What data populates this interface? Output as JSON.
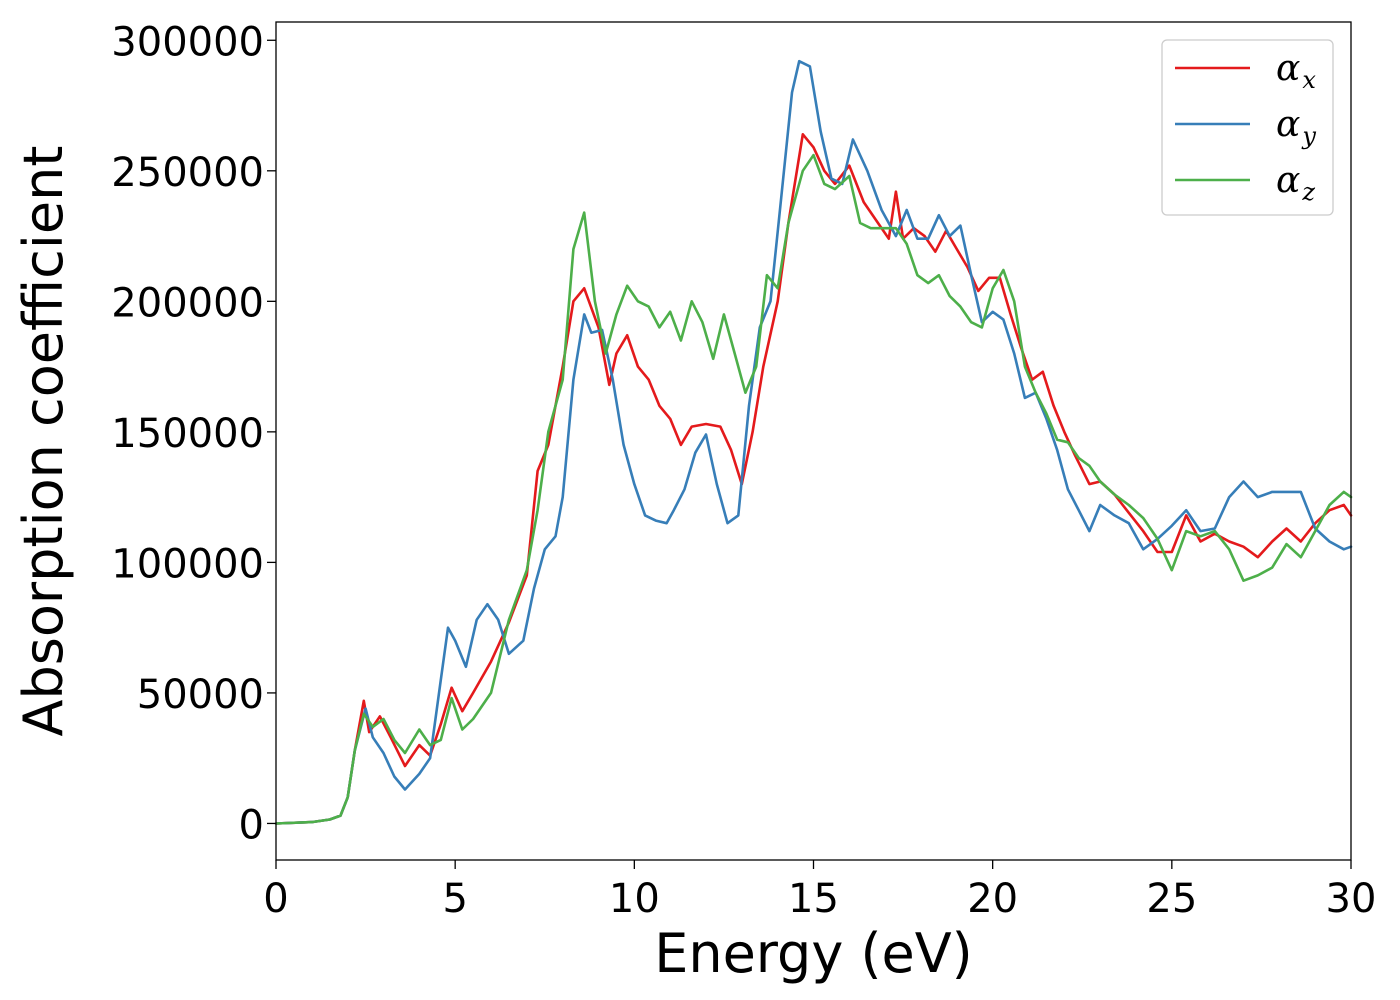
{
  "chart_data": {
    "type": "line",
    "title": "",
    "xlabel": "Energy (eV)",
    "ylabel": "Absorption coefficient",
    "xlim": [
      0,
      30
    ],
    "ylim": [
      -14000,
      307000
    ],
    "xticks": [
      0,
      5,
      10,
      15,
      20,
      25,
      30
    ],
    "yticks": [
      0,
      50000,
      100000,
      150000,
      200000,
      250000,
      300000
    ],
    "grid": false,
    "legend_position": "upper right",
    "series": [
      {
        "name": "αx",
        "legend_base": "α",
        "legend_sub": "x",
        "color": "#e41a1c",
        "x": [
          0,
          1.0,
          1.5,
          1.8,
          2.0,
          2.2,
          2.45,
          2.6,
          2.9,
          3.2,
          3.6,
          4.0,
          4.3,
          4.6,
          4.9,
          5.2,
          5.5,
          6.0,
          6.5,
          7.0,
          7.3,
          7.6,
          8.0,
          8.3,
          8.6,
          9.0,
          9.3,
          9.5,
          9.8,
          10.1,
          10.4,
          10.7,
          11.0,
          11.3,
          11.6,
          12.0,
          12.4,
          12.7,
          13.0,
          13.3,
          13.6,
          14.0,
          14.3,
          14.7,
          15.0,
          15.3,
          15.6,
          16.0,
          16.4,
          16.8,
          17.1,
          17.3,
          17.5,
          17.8,
          18.1,
          18.4,
          18.7,
          19.0,
          19.3,
          19.6,
          19.9,
          20.2,
          20.5,
          20.8,
          21.1,
          21.4,
          21.7,
          22.0,
          22.3,
          22.7,
          23.0,
          23.4,
          23.8,
          24.2,
          24.6,
          25.0,
          25.4,
          25.8,
          26.2,
          26.6,
          27.0,
          27.4,
          27.8,
          28.2,
          28.6,
          29.0,
          29.4,
          29.8,
          30.0
        ],
        "y": [
          0,
          500,
          1500,
          3000,
          10000,
          28000,
          47000,
          35000,
          41000,
          33000,
          22000,
          30000,
          26000,
          38000,
          52000,
          43000,
          50000,
          62000,
          77000,
          95000,
          135000,
          145000,
          175000,
          200000,
          205000,
          190000,
          168000,
          180000,
          187000,
          175000,
          170000,
          160000,
          155000,
          145000,
          152000,
          153000,
          152000,
          143000,
          130000,
          150000,
          175000,
          200000,
          230000,
          264000,
          259000,
          250000,
          245000,
          252000,
          238000,
          230000,
          224000,
          242000,
          224000,
          228000,
          225000,
          219000,
          227000,
          220000,
          213000,
          204000,
          209000,
          209000,
          195000,
          182000,
          170000,
          173000,
          160000,
          150000,
          141000,
          130000,
          131000,
          126000,
          119000,
          112000,
          104000,
          104000,
          118000,
          108000,
          111000,
          108000,
          106000,
          102000,
          108000,
          113000,
          108000,
          115000,
          120000,
          122000,
          118000
        ]
      },
      {
        "name": "αy",
        "legend_base": "α",
        "legend_sub": "y",
        "color": "#377eb8",
        "x": [
          0,
          1.0,
          1.5,
          1.8,
          2.0,
          2.2,
          2.5,
          2.7,
          3.0,
          3.3,
          3.6,
          4.0,
          4.3,
          4.6,
          4.8,
          5.0,
          5.3,
          5.6,
          5.9,
          6.2,
          6.5,
          6.9,
          7.2,
          7.5,
          7.8,
          8.0,
          8.3,
          8.6,
          8.8,
          9.1,
          9.4,
          9.7,
          10.0,
          10.3,
          10.6,
          10.9,
          11.1,
          11.4,
          11.7,
          12.0,
          12.3,
          12.6,
          12.9,
          13.2,
          13.5,
          13.8,
          14.1,
          14.4,
          14.6,
          14.9,
          15.2,
          15.5,
          15.8,
          16.1,
          16.5,
          16.9,
          17.3,
          17.6,
          17.9,
          18.2,
          18.5,
          18.8,
          19.1,
          19.4,
          19.7,
          20.0,
          20.3,
          20.6,
          20.9,
          21.2,
          21.5,
          21.8,
          22.1,
          22.4,
          22.7,
          23.0,
          23.4,
          23.8,
          24.2,
          24.6,
          25.0,
          25.4,
          25.8,
          26.2,
          26.6,
          27.0,
          27.4,
          27.8,
          28.2,
          28.6,
          29.0,
          29.4,
          29.8,
          30.0
        ],
        "y": [
          0,
          500,
          1500,
          3000,
          10000,
          28000,
          44000,
          33000,
          27000,
          18000,
          13000,
          19000,
          25000,
          55000,
          75000,
          70000,
          60000,
          78000,
          84000,
          78000,
          65000,
          70000,
          90000,
          105000,
          110000,
          125000,
          170000,
          195000,
          188000,
          189000,
          170000,
          145000,
          130000,
          118000,
          116000,
          115000,
          120000,
          128000,
          142000,
          149000,
          130000,
          115000,
          118000,
          160000,
          190000,
          200000,
          240000,
          280000,
          292000,
          290000,
          265000,
          247000,
          245000,
          262000,
          250000,
          235000,
          225000,
          235000,
          224000,
          224000,
          233000,
          225000,
          229000,
          210000,
          192000,
          196000,
          193000,
          180000,
          163000,
          165000,
          155000,
          143000,
          128000,
          120000,
          112000,
          122000,
          118000,
          115000,
          105000,
          109000,
          114000,
          120000,
          112000,
          113000,
          125000,
          131000,
          125000,
          127000,
          127000,
          127000,
          113000,
          108000,
          105000,
          106000
        ]
      },
      {
        "name": "αz",
        "legend_base": "α",
        "legend_sub": "z",
        "color": "#4daf4a",
        "x": [
          0,
          1.0,
          1.5,
          1.8,
          2.0,
          2.2,
          2.45,
          2.7,
          3.0,
          3.3,
          3.6,
          4.0,
          4.3,
          4.6,
          4.9,
          5.2,
          5.5,
          6.0,
          6.5,
          7.0,
          7.3,
          7.6,
          8.0,
          8.3,
          8.6,
          8.9,
          9.2,
          9.5,
          9.8,
          10.1,
          10.4,
          10.7,
          11.0,
          11.3,
          11.6,
          11.9,
          12.2,
          12.5,
          12.8,
          13.1,
          13.4,
          13.7,
          14.0,
          14.3,
          14.7,
          15.0,
          15.3,
          15.6,
          16.0,
          16.3,
          16.6,
          17.0,
          17.3,
          17.6,
          17.9,
          18.2,
          18.5,
          18.8,
          19.1,
          19.4,
          19.7,
          20.0,
          20.3,
          20.6,
          20.9,
          21.2,
          21.5,
          21.8,
          22.1,
          22.4,
          22.7,
          23.0,
          23.4,
          23.8,
          24.2,
          24.6,
          25.0,
          25.4,
          25.8,
          26.2,
          26.6,
          27.0,
          27.4,
          27.8,
          28.2,
          28.6,
          29.0,
          29.4,
          29.8,
          30.0
        ],
        "y": [
          0,
          500,
          1500,
          3000,
          10000,
          28000,
          42000,
          37000,
          40000,
          32000,
          27000,
          36000,
          30000,
          32000,
          48000,
          36000,
          40000,
          50000,
          78000,
          97000,
          120000,
          150000,
          170000,
          220000,
          234000,
          200000,
          180000,
          195000,
          206000,
          200000,
          198000,
          190000,
          196000,
          185000,
          200000,
          192000,
          178000,
          195000,
          180000,
          165000,
          175000,
          210000,
          205000,
          230000,
          250000,
          256000,
          245000,
          243000,
          248000,
          230000,
          228000,
          228000,
          228000,
          222000,
          210000,
          207000,
          210000,
          202000,
          198000,
          192000,
          190000,
          205000,
          212000,
          200000,
          175000,
          165000,
          157000,
          147000,
          146000,
          140000,
          137000,
          131000,
          126000,
          122000,
          117000,
          109000,
          97000,
          112000,
          110000,
          112000,
          105000,
          93000,
          95000,
          98000,
          107000,
          102000,
          112000,
          122000,
          127000,
          125000
        ]
      }
    ]
  }
}
